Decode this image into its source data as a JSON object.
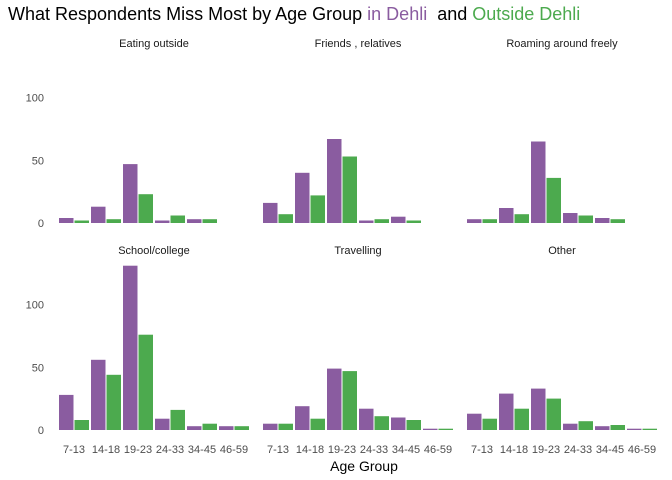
{
  "chart_data": {
    "type": "bar",
    "title": {
      "prefix": "What Respondents Miss Most by Age Group ",
      "series1_label": "in Dehli",
      "middle": "  and ",
      "series2_label": "Outside Dehli"
    },
    "xlabel": "Age Group",
    "ylabel": "",
    "ylim": [
      0,
      135
    ],
    "yticks": [
      0,
      50,
      100
    ],
    "grid": false,
    "legend": "none (encoded in title colors)",
    "colors": {
      "in_dehli": "#8a5ca0",
      "outside_dehli": "#4caa4e"
    },
    "categories": [
      "7-13",
      "14-18",
      "19-23",
      "24-33",
      "34-45",
      "46-59"
    ],
    "panels": [
      {
        "name": "Eating outside",
        "series": [
          {
            "name": "in Dehli",
            "values": [
              4,
              13,
              47,
              2,
              3,
              0
            ]
          },
          {
            "name": "Outside Dehli",
            "values": [
              2,
              3,
              23,
              6,
              3,
              0
            ]
          }
        ]
      },
      {
        "name": "Friends , relatives",
        "series": [
          {
            "name": "in Dehli",
            "values": [
              16,
              40,
              67,
              2,
              5,
              0
            ]
          },
          {
            "name": "Outside Dehli",
            "values": [
              7,
              22,
              53,
              3,
              2,
              0
            ]
          }
        ]
      },
      {
        "name": "Roaming around freely",
        "series": [
          {
            "name": "in Dehli",
            "values": [
              3,
              12,
              65,
              8,
              4,
              0
            ]
          },
          {
            "name": "Outside Dehli",
            "values": [
              3,
              7,
              36,
              6,
              3,
              0
            ]
          }
        ]
      },
      {
        "name": "School/college",
        "series": [
          {
            "name": "in Dehli",
            "values": [
              28,
              56,
              131,
              9,
              3,
              3
            ]
          },
          {
            "name": "Outside Dehli",
            "values": [
              8,
              44,
              76,
              16,
              5,
              3
            ]
          }
        ]
      },
      {
        "name": "Travelling",
        "series": [
          {
            "name": "in Dehli",
            "values": [
              5,
              19,
              49,
              17,
              10,
              1
            ]
          },
          {
            "name": "Outside Dehli",
            "values": [
              5,
              9,
              47,
              11,
              8,
              1
            ]
          }
        ]
      },
      {
        "name": "Other",
        "series": [
          {
            "name": "in Dehli",
            "values": [
              13,
              29,
              33,
              5,
              3,
              1
            ]
          },
          {
            "name": "Outside Dehli",
            "values": [
              9,
              17,
              25,
              7,
              4,
              1
            ]
          }
        ]
      }
    ]
  }
}
